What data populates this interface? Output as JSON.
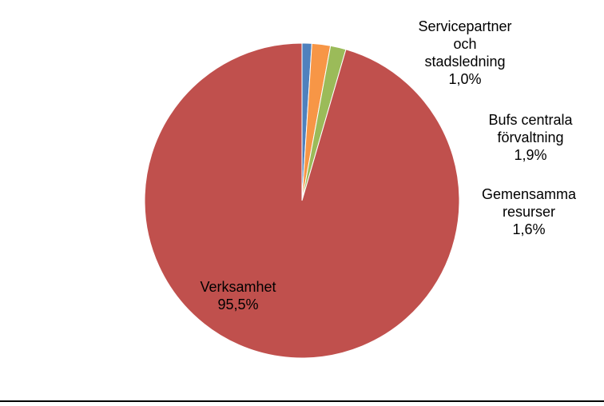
{
  "chart_data": {
    "type": "pie",
    "start_angle_deg": 0,
    "direction": "clockwise",
    "slices": [
      {
        "label_lines": [
          "Servicepartner",
          "och",
          "stadsledning"
        ],
        "percent_label": "1,0%",
        "value": 1.0,
        "color": "#4F81BD"
      },
      {
        "label_lines": [
          "Bufs centrala",
          "förvaltning"
        ],
        "percent_label": "1,9%",
        "value": 1.9,
        "color": "#F79646"
      },
      {
        "label_lines": [
          "Gemensamma",
          "resurser"
        ],
        "percent_label": "1,6%",
        "value": 1.6,
        "color": "#9BBB59"
      },
      {
        "label_lines": [
          "Verksamhet"
        ],
        "percent_label": "95,5%",
        "value": 95.5,
        "color": "#C0504D"
      }
    ]
  }
}
